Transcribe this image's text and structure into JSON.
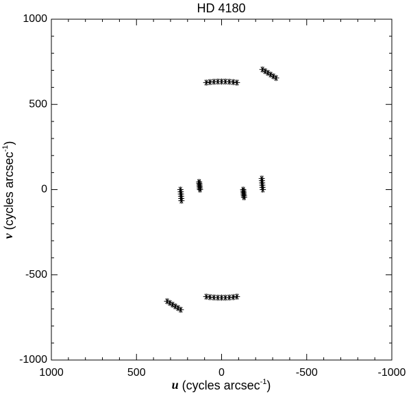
{
  "chart_data": {
    "type": "scatter",
    "title": "HD 4180",
    "xlabel": {
      "symbol": "u",
      "text": " (cycles arcsec",
      "superscript": "-1",
      "close": ")"
    },
    "ylabel": {
      "symbol": "v",
      "text": " (cycles arcsec",
      "superscript": "-1",
      "close": ")"
    },
    "xlim": [
      1000,
      -1000
    ],
    "ylim": [
      -1000,
      1000
    ],
    "xticks": [
      1000,
      500,
      0,
      -500,
      -1000
    ],
    "yticks": [
      -1000,
      -500,
      0,
      500,
      1000
    ],
    "color": "#000000",
    "x": [
      90,
      68,
      45,
      22,
      0,
      -22,
      -45,
      -68,
      -90,
      -90,
      -68,
      -45,
      -22,
      0,
      22,
      45,
      68,
      90,
      -240,
      -256,
      -272,
      -288,
      -304,
      -320,
      240,
      256,
      272,
      288,
      304,
      320,
      242,
      240,
      239,
      238,
      237,
      236,
      -242,
      -240,
      -239,
      -238,
      -237,
      -236,
      132,
      131,
      130,
      129,
      128,
      127,
      -132,
      -131,
      -130,
      -129,
      -128,
      -127
    ],
    "values": [
      628,
      631,
      633,
      634,
      634,
      634,
      633,
      631,
      628,
      -628,
      -631,
      -633,
      -634,
      -634,
      -634,
      -633,
      -631,
      -628,
      705,
      695,
      685,
      675,
      665,
      655,
      -705,
      -695,
      -685,
      -675,
      -665,
      -655,
      0,
      -13,
      -26,
      -39,
      -52,
      -65,
      0,
      13,
      26,
      39,
      52,
      65,
      45,
      36,
      27,
      18,
      9,
      0,
      -45,
      -36,
      -27,
      -18,
      -9,
      0
    ]
  }
}
